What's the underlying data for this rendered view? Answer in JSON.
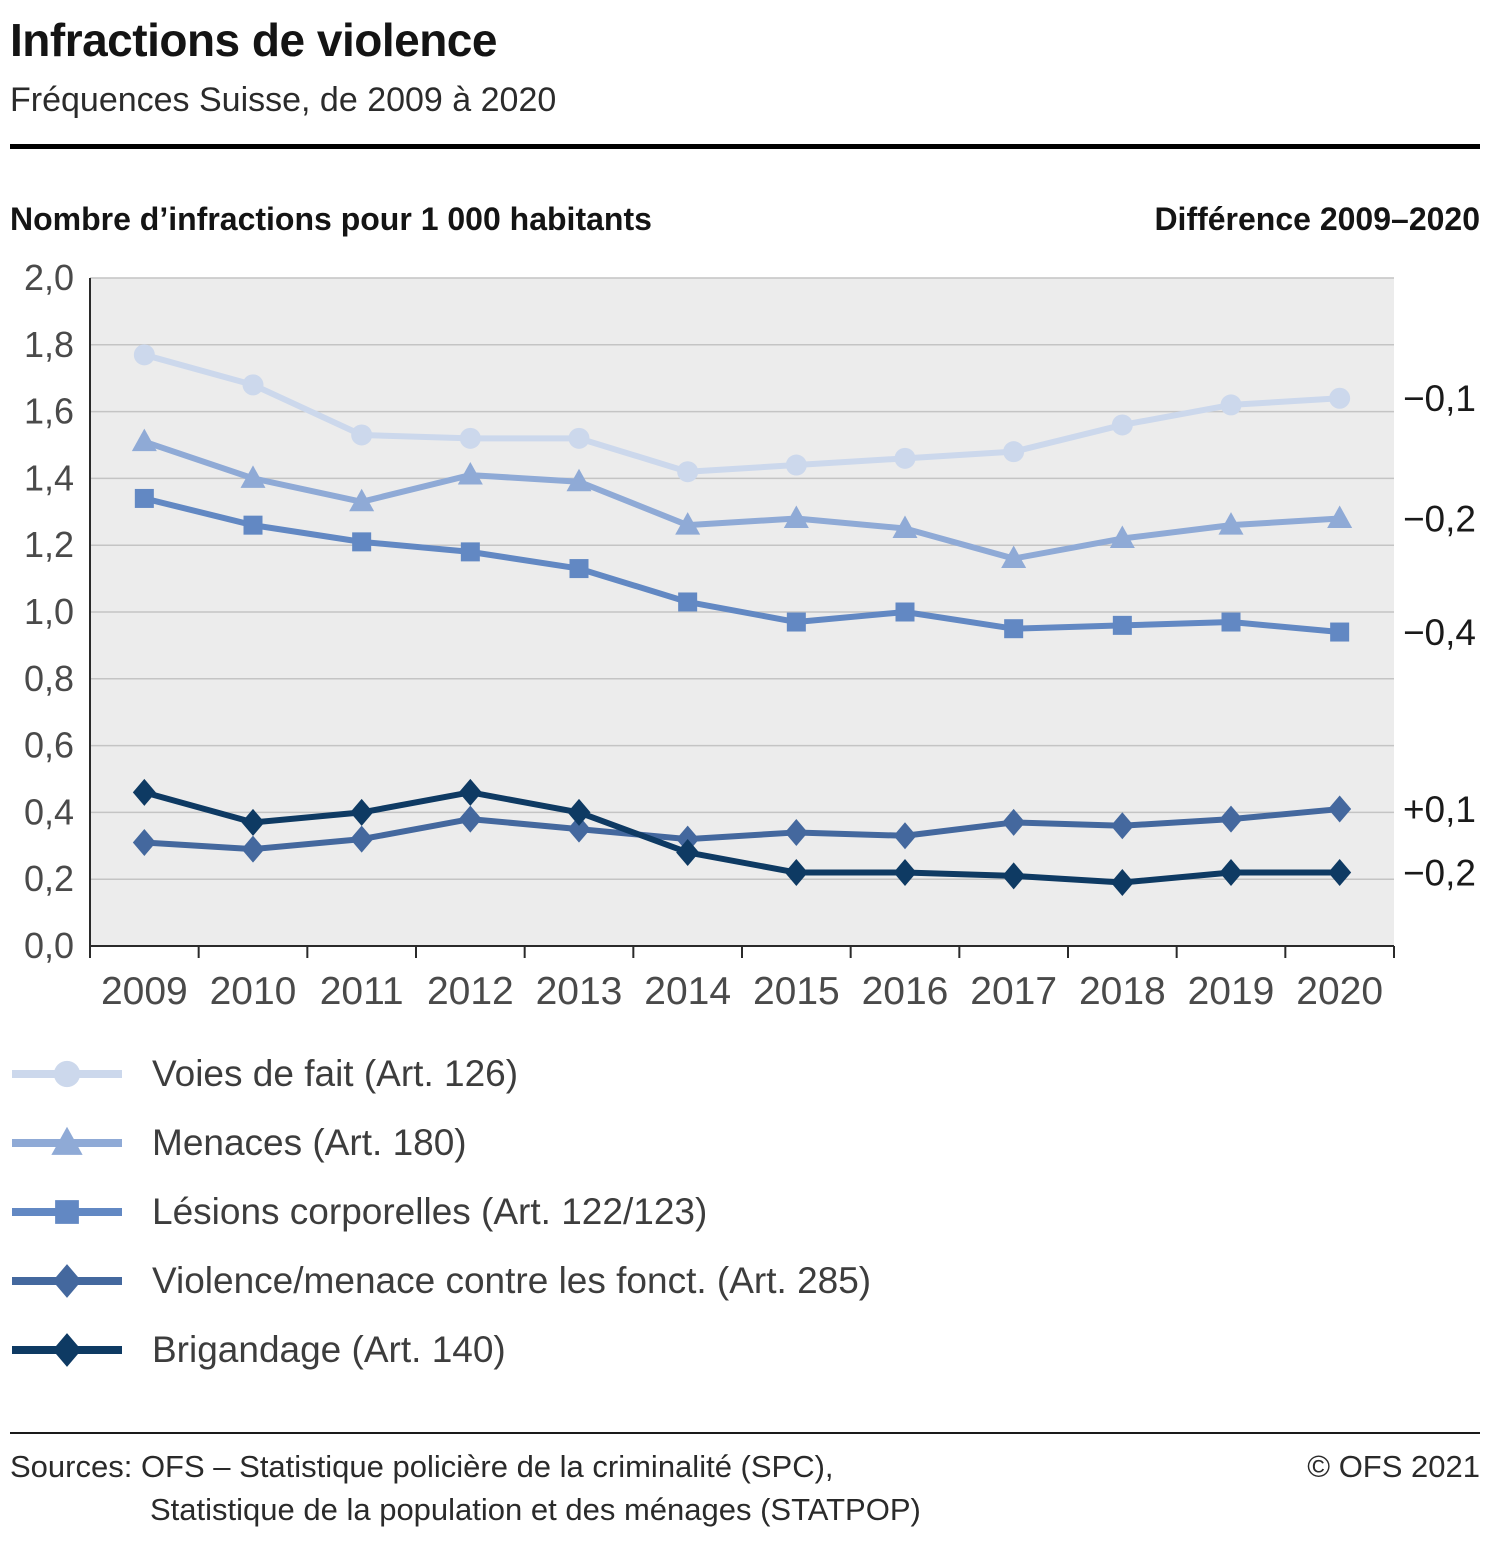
{
  "header": {
    "title": "Infractions de violence",
    "subtitle": "Fréquences Suisse, de 2009 à 2020"
  },
  "chart": {
    "left_header": "Nombre d’infractions pour 1 000 habitants",
    "right_header": "Différence 2009–2020"
  },
  "chart_data": {
    "type": "line",
    "x": [
      "2009",
      "2010",
      "2011",
      "2012",
      "2013",
      "2014",
      "2015",
      "2016",
      "2017",
      "2018",
      "2019",
      "2020"
    ],
    "ylim": [
      0,
      2.0
    ],
    "ytick_step": 0.2,
    "ytick_labels": [
      "0,0",
      "0,2",
      "0,4",
      "0,6",
      "0,8",
      "1,0",
      "1,2",
      "1,4",
      "1,6",
      "1,8",
      "2,0"
    ],
    "grid": true,
    "legend_position": "bottom",
    "plot_background": "#ececec",
    "grid_color": "#c4c4c4",
    "axis_color": "#2a2a2a",
    "axis_label_color": "#4a4a4a",
    "difference_label_color": "#1a1a1a",
    "series": [
      {
        "name": "Voies de fait (Art. 126)",
        "marker": "circle",
        "color": "#ccd8ec",
        "values": [
          1.77,
          1.68,
          1.53,
          1.52,
          1.52,
          1.42,
          1.44,
          1.46,
          1.48,
          1.56,
          1.62,
          1.64
        ],
        "difference_label": "−0,1"
      },
      {
        "name": "Menaces (Art. 180)",
        "marker": "triangle",
        "color": "#8faad6",
        "values": [
          1.51,
          1.4,
          1.33,
          1.41,
          1.39,
          1.26,
          1.28,
          1.25,
          1.16,
          1.22,
          1.26,
          1.28
        ],
        "difference_label": "−0,2"
      },
      {
        "name": "Lésions corporelles (Art. 122/123)",
        "marker": "square",
        "color": "#6288c3",
        "values": [
          1.34,
          1.26,
          1.21,
          1.18,
          1.13,
          1.03,
          0.97,
          1.0,
          0.95,
          0.96,
          0.97,
          0.94
        ],
        "difference_label": "−0,4"
      },
      {
        "name": "Violence/menace contre les fonct. (Art. 285)",
        "marker": "diamond",
        "color": "#44689e",
        "values": [
          0.31,
          0.29,
          0.32,
          0.38,
          0.35,
          0.32,
          0.34,
          0.33,
          0.37,
          0.36,
          0.38,
          0.41
        ],
        "difference_label": "+0,1"
      },
      {
        "name": "Brigandage (Art. 140)",
        "marker": "diamond",
        "color": "#0e3a63",
        "values": [
          0.46,
          0.37,
          0.4,
          0.46,
          0.4,
          0.28,
          0.22,
          0.22,
          0.21,
          0.19,
          0.22,
          0.22
        ],
        "difference_label": "−0,2"
      }
    ]
  },
  "footer": {
    "sources_line1": "Sources: OFS – Statistique policière de la criminalité (SPC),",
    "sources_line2": "Statistique de la population et des ménages (STATPOP)",
    "copyright": "© OFS 2021"
  }
}
